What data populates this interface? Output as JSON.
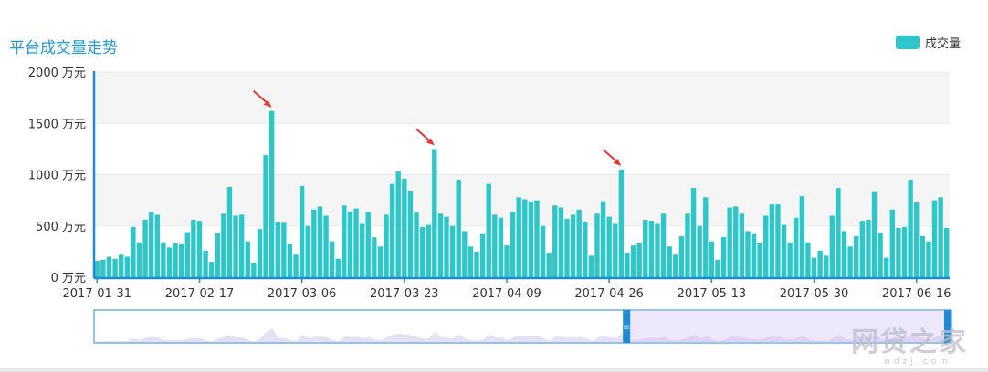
{
  "title": "平台成交量走势",
  "legend": {
    "label": "成交量",
    "color": "#2ec7c9"
  },
  "watermark": {
    "text": "网贷之家",
    "sub": "wdzj.com"
  },
  "chart_data": {
    "type": "bar",
    "ylim": [
      0,
      2000
    ],
    "yticks": [
      "0 万元",
      "500 万元",
      "1000 万元",
      "1500 万元",
      "2000 万元"
    ],
    "ytick_values": [
      0,
      500,
      1000,
      1500,
      2000
    ],
    "xtick_labels": [
      "2017-01-31",
      "2017-02-17",
      "2017-03-06",
      "2017-03-23",
      "2017-04-09",
      "2017-04-26",
      "2017-05-13",
      "2017-05-30",
      "2017-06-16"
    ],
    "xtick_index": [
      0,
      17,
      34,
      51,
      68,
      85,
      102,
      119,
      136
    ],
    "start_date": "2017-01-31",
    "series": [
      {
        "name": "成交量",
        "color": "#2ec7c9",
        "values": [
          160,
          170,
          200,
          180,
          220,
          200,
          490,
          340,
          560,
          640,
          610,
          340,
          290,
          330,
          320,
          440,
          560,
          550,
          260,
          150,
          430,
          620,
          880,
          600,
          610,
          350,
          140,
          470,
          1190,
          1620,
          540,
          530,
          320,
          220,
          890,
          500,
          660,
          690,
          600,
          350,
          180,
          700,
          640,
          670,
          520,
          640,
          390,
          300,
          610,
          910,
          1030,
          960,
          840,
          630,
          490,
          510,
          1250,
          620,
          590,
          500,
          950,
          450,
          300,
          250,
          420,
          910,
          610,
          580,
          310,
          640,
          780,
          760,
          740,
          750,
          500,
          240,
          700,
          680,
          570,
          610,
          660,
          540,
          210,
          620,
          740,
          590,
          520,
          1050,
          240,
          310,
          330,
          560,
          550,
          520,
          620,
          300,
          220,
          400,
          620,
          870,
          500,
          780,
          350,
          170,
          390,
          680,
          690,
          620,
          450,
          420,
          330,
          600,
          710,
          710,
          510,
          340,
          580,
          790,
          340,
          190,
          260,
          210,
          600,
          870,
          450,
          300,
          400,
          550,
          560,
          830,
          430,
          190,
          660,
          480,
          490,
          950,
          730,
          400,
          350,
          750,
          780,
          480
        ]
      }
    ],
    "annotations": [
      "arrow",
      "arrow",
      "arrow"
    ],
    "annotation_index": [
      29,
      56,
      87
    ],
    "dataZoom": {
      "start_fraction": 0.0,
      "end_fraction": 0.62
    }
  }
}
